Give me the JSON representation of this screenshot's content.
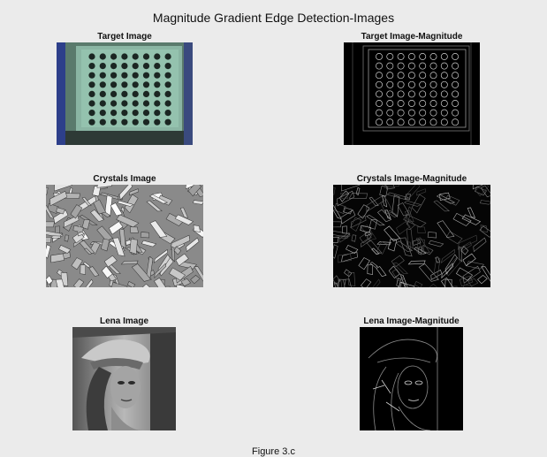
{
  "figure_title": "Magnitude Gradient Edge Detection-Images",
  "caption": "Figure 3.c",
  "panels": [
    {
      "title": "Target Image",
      "kind": "target"
    },
    {
      "title": "Target Image-Magnitude",
      "kind": "target-magnitude"
    },
    {
      "title": "Crystals Image",
      "kind": "crystals"
    },
    {
      "title": "Crystals Image-Magnitude",
      "kind": "crystals-magnitude"
    },
    {
      "title": "Lena Image",
      "kind": "lena"
    },
    {
      "title": "Lena Image-Magnitude",
      "kind": "lena-magnitude"
    }
  ]
}
